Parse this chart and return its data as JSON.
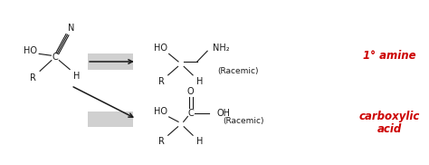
{
  "bg_color": "#ffffff",
  "text_color": "#1a1a1a",
  "red_color": "#cc0000",
  "gray_box_color": "#d0d0d0",
  "arrow_color": "#1a1a1a",
  "reactant": {
    "N_label": "N",
    "C_label": "C",
    "HO_label": "HO",
    "R_label": "R",
    "H_label": "H"
  },
  "product1": {
    "HO_label": "HO",
    "NH2_label": "NH₂",
    "R_label": "R",
    "H_label": "H",
    "racemic_label": "(Racemic)",
    "name_label": "1° amine"
  },
  "product2": {
    "HO_label": "HO",
    "C_label": "C",
    "O_label": "O",
    "OH_label": "OH",
    "R_label": "R",
    "H_label": "H",
    "racemic_label": "(Racemic)",
    "name_line1": "carboxylic",
    "name_line2": "acid"
  },
  "layout": {
    "fig_width": 4.74,
    "fig_height": 1.82,
    "dpi": 100,
    "xlim": [
      0,
      10
    ],
    "ylim": [
      0,
      4
    ]
  }
}
